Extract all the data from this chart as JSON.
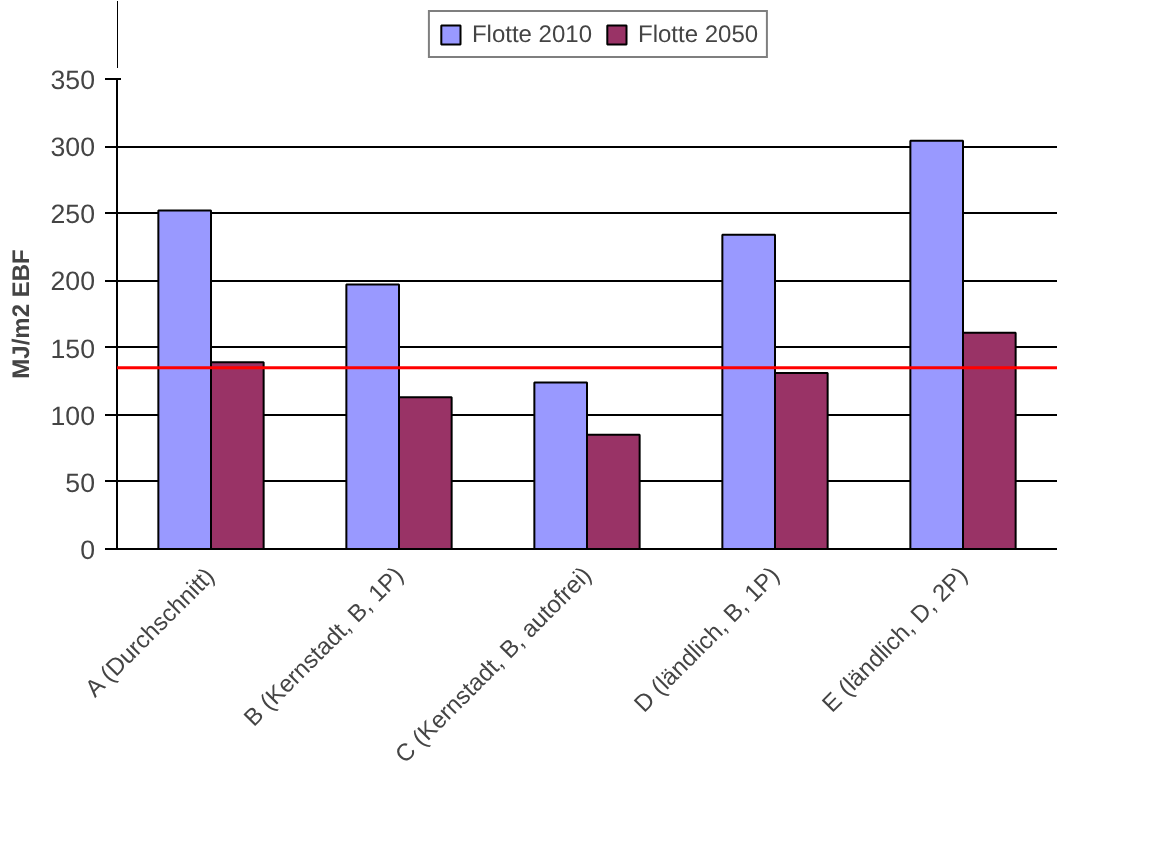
{
  "chart_data": {
    "type": "bar",
    "ylabel": "MJ/m2 EBF",
    "categories": [
      "A (Durchschnitt)",
      "B (Kernstadt, B, 1P)",
      "C (Kernstadt, B, autofrei)",
      "D (ländlich, B, 1P)",
      "E (ländlich, D, 2P)"
    ],
    "series": [
      {
        "name": "Flotte 2010",
        "color": "#9999ff",
        "values": [
          252,
          197,
          124,
          234,
          304
        ]
      },
      {
        "name": "Flotte 2050",
        "color": "#993366",
        "values": [
          139,
          113,
          85,
          131,
          161
        ]
      }
    ],
    "ylim": [
      0,
      350
    ],
    "yticks": [
      0,
      50,
      100,
      150,
      200,
      250,
      300,
      350
    ],
    "ref_lines": [
      {
        "axis": "y",
        "value": 135,
        "label": null,
        "color": "#ff0000"
      }
    ],
    "grid": "y",
    "legend": "top"
  }
}
